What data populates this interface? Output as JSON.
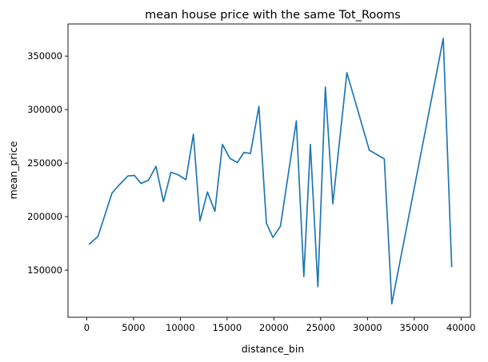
{
  "chart_data": {
    "type": "line",
    "title": "mean house price with the same Tot_Rooms",
    "xlabel": "distance_bin",
    "ylabel": "mean_price",
    "xlim": [
      -2000,
      41000
    ],
    "ylim": [
      106000,
      380000
    ],
    "xticks": [
      0,
      5000,
      10000,
      15000,
      20000,
      25000,
      30000,
      35000,
      40000
    ],
    "xtick_labels": [
      "0",
      "5000",
      "10000",
      "15000",
      "20000",
      "25000",
      "30000",
      "35000",
      "40000"
    ],
    "yticks": [
      150000,
      200000,
      250000,
      300000,
      350000
    ],
    "ytick_labels": [
      "150000",
      "200000",
      "250000",
      "300000",
      "350000"
    ],
    "grid": false,
    "color": "#1f77b4",
    "series": [
      {
        "x": [
          300,
          1200,
          2700,
          3400,
          4400,
          5100,
          5800,
          6600,
          7400,
          8200,
          9000,
          9800,
          10600,
          11400,
          12100,
          12900,
          13700,
          14500,
          15300,
          16100,
          16800,
          17500,
          18400,
          19200,
          19900,
          20700,
          22400,
          23200,
          23900,
          24700,
          25500,
          26300,
          27800,
          30200,
          31800,
          32600,
          38100,
          39000
        ],
        "y": [
          174500,
          181500,
          222000,
          229000,
          238000,
          238500,
          231000,
          234000,
          247000,
          214000,
          241500,
          239000,
          234500,
          277000,
          196000,
          223000,
          205000,
          267500,
          254500,
          250500,
          260000,
          259000,
          303000,
          194000,
          180500,
          191000,
          289500,
          144000,
          267500,
          134500,
          321000,
          212000,
          334500,
          262000,
          254000,
          118500,
          366500,
          153500
        ]
      }
    ]
  }
}
